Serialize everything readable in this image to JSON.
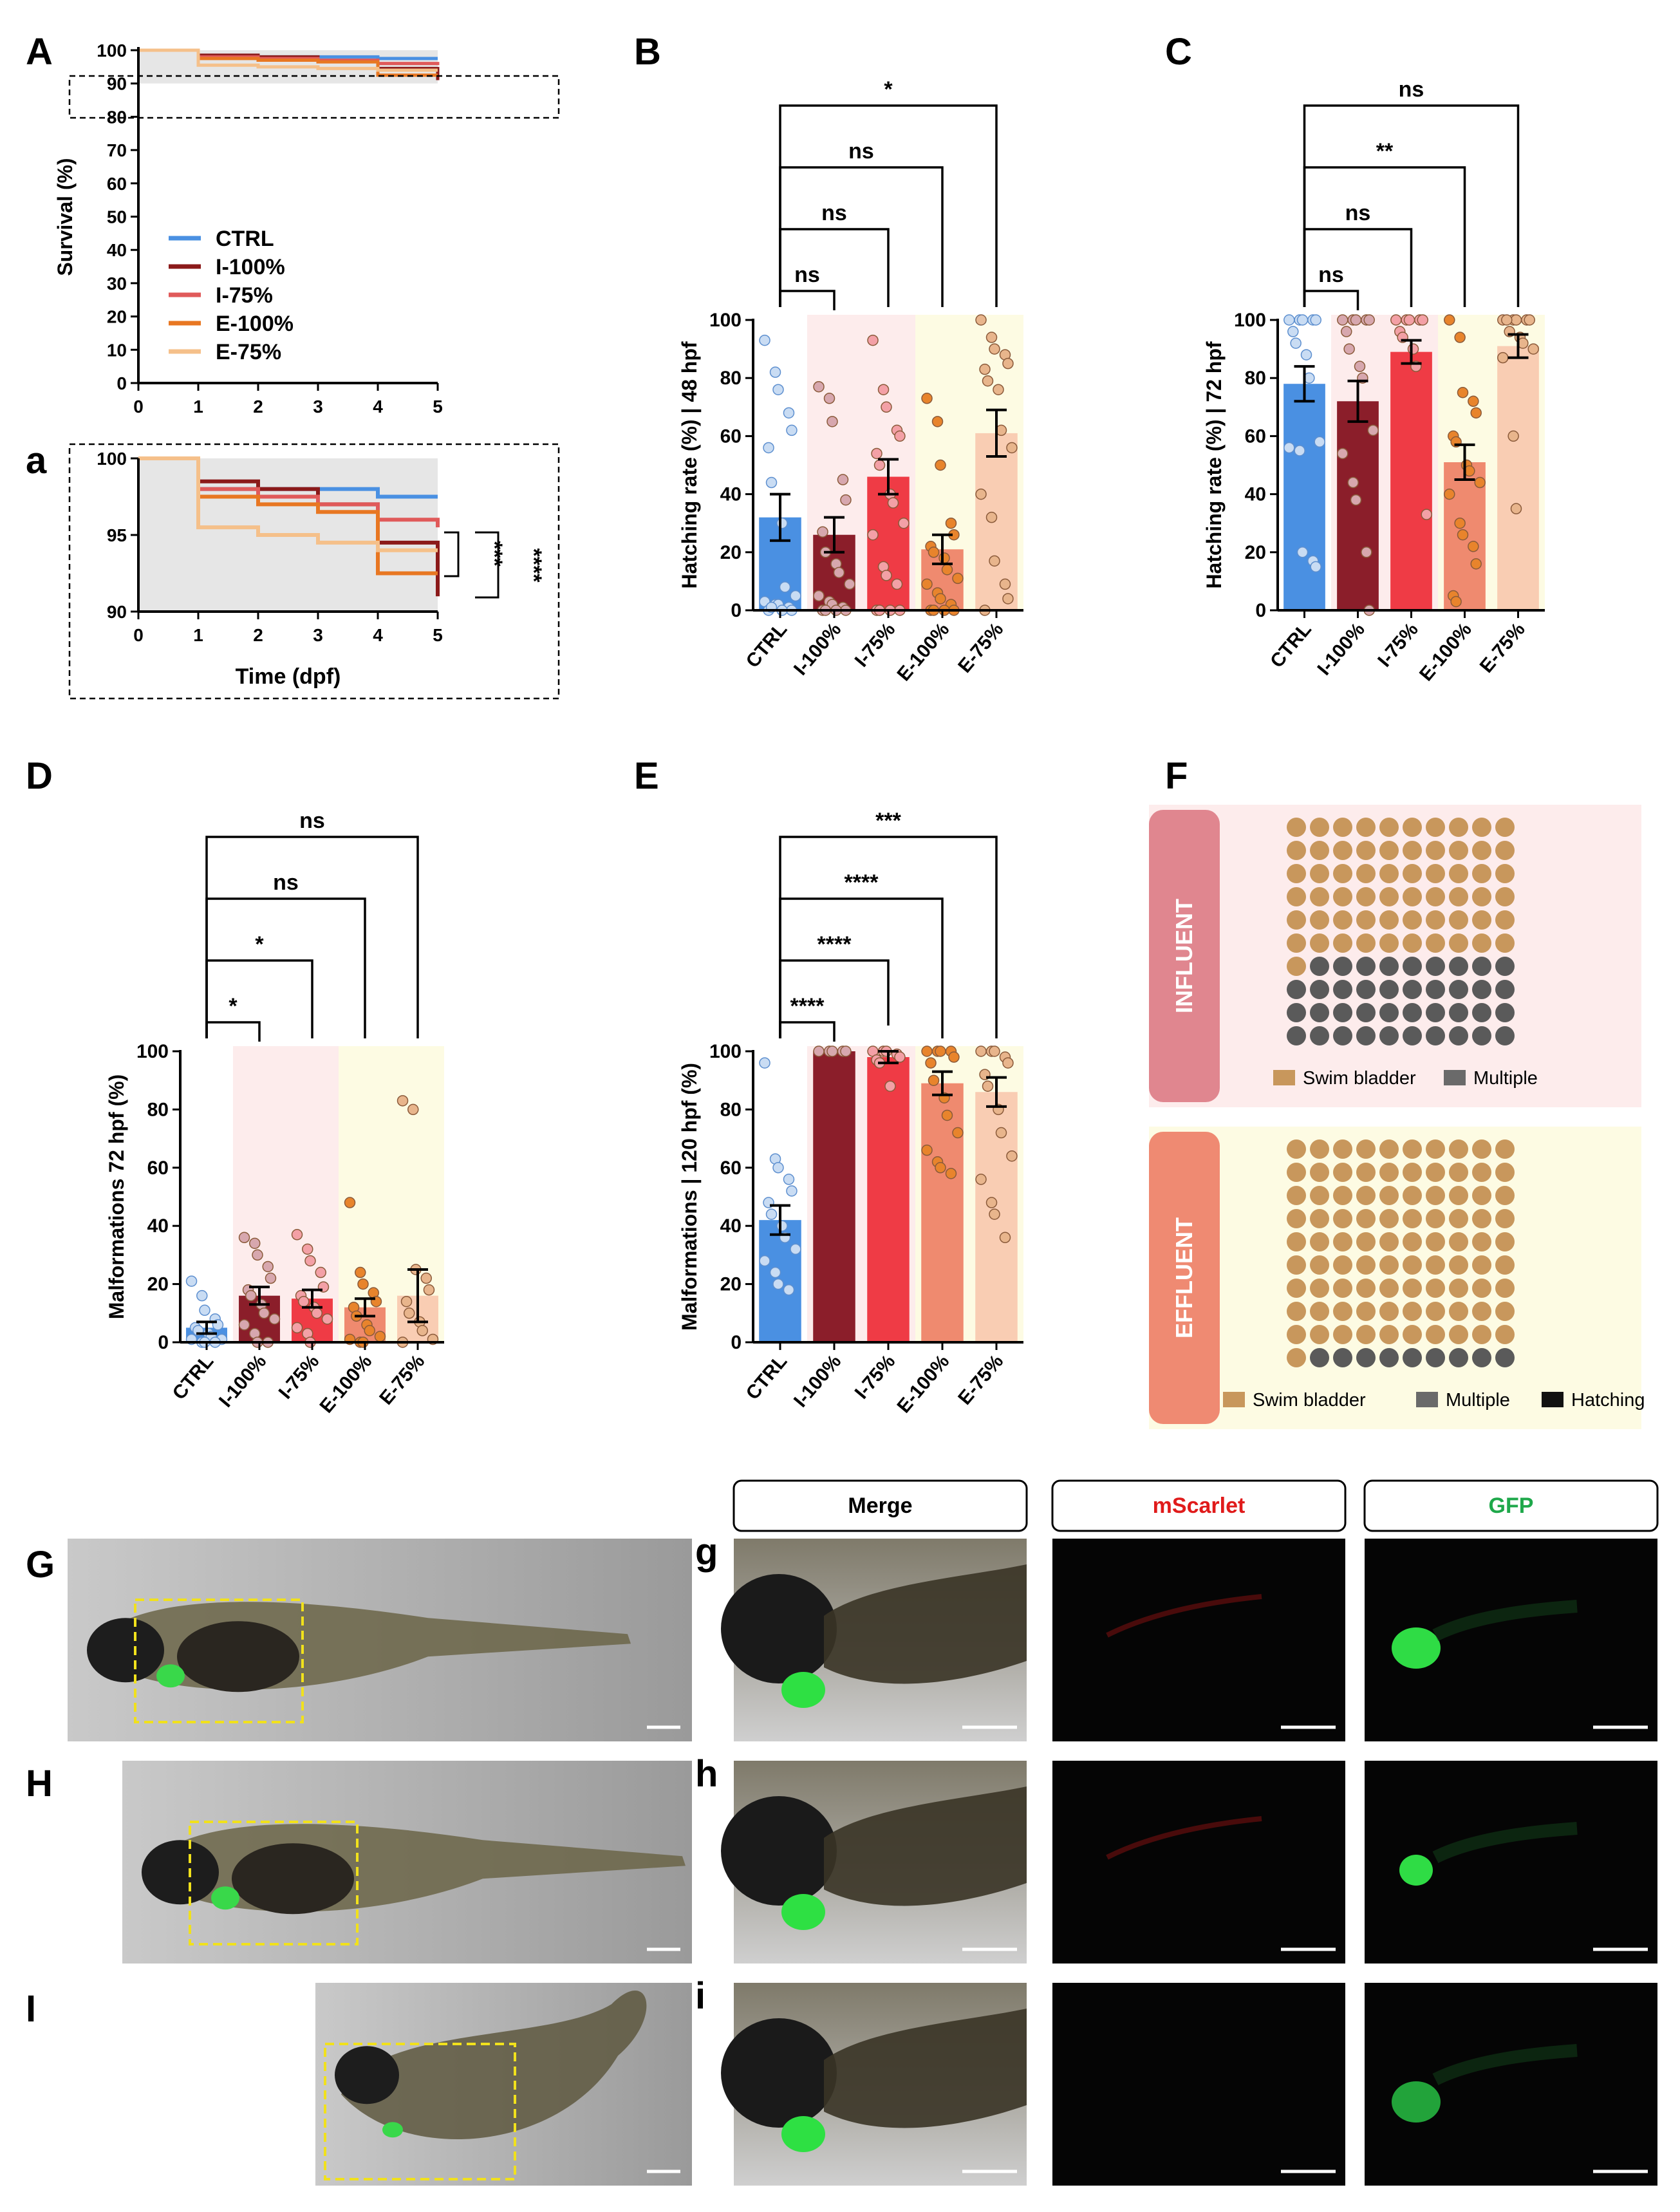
{
  "colors": {
    "CTRL": "#4a90e2",
    "I100": "#8b1e2a",
    "I75": "#ef3b45",
    "E100": "#ef8a6f",
    "E75": "#f9cdb3",
    "I100_line": "#8b1a1a",
    "I75_line": "#e05a5a",
    "E100_line": "#e87722",
    "E75_line": "#f5c08a",
    "influent_bg": "#fdecec",
    "effluent_bg": "#fdfbe3",
    "swim": "#c8975c",
    "multiple": "#5a5a5a"
  },
  "panel_labels": {
    "A": "A",
    "a": "a",
    "B": "B",
    "C": "C",
    "D": "D",
    "E": "E",
    "F": "F",
    "G": "G",
    "H": "H",
    "I": "I",
    "g": "g",
    "h": "h",
    "i": "i"
  },
  "chart_data": [
    {
      "id": "A",
      "type": "line",
      "title": "",
      "xlabel": "",
      "ylabel": "Survival (%)",
      "xlim": [
        0,
        5
      ],
      "ylim": [
        0,
        100
      ],
      "xticks": [
        "0",
        "1",
        "2",
        "3",
        "4",
        "5"
      ],
      "yticks": [
        "0",
        "10",
        "20",
        "30",
        "40",
        "50",
        "60",
        "70",
        "80",
        "90",
        "100"
      ],
      "legend": [
        "CTRL",
        "I-100%",
        "I-75%",
        "E-100%",
        "E-75%"
      ],
      "series": [
        {
          "name": "CTRL",
          "x": [
            0,
            1,
            4,
            5
          ],
          "y": [
            100,
            98,
            97.5,
            97.5
          ]
        },
        {
          "name": "I-100%",
          "x": [
            0,
            1,
            2,
            3,
            4,
            5
          ],
          "y": [
            100,
            98.5,
            98,
            97,
            94.5,
            91
          ]
        },
        {
          "name": "I-75%",
          "x": [
            0,
            1,
            2,
            3,
            4,
            5
          ],
          "y": [
            100,
            98,
            97.5,
            97,
            96,
            95.5
          ]
        },
        {
          "name": "E-100%",
          "x": [
            0,
            1,
            2,
            3,
            4,
            5
          ],
          "y": [
            100,
            97.5,
            97,
            96.5,
            92.5,
            92.5
          ]
        },
        {
          "name": "E-75%",
          "x": [
            0,
            1,
            2,
            3,
            4,
            5
          ],
          "y": [
            100,
            95.5,
            95,
            94.5,
            94,
            94
          ]
        }
      ]
    },
    {
      "id": "a",
      "type": "line",
      "xlabel": "Time (dpf)",
      "ylabel": "",
      "xlim": [
        0,
        5
      ],
      "ylim": [
        90,
        100
      ],
      "xticks": [
        "0",
        "1",
        "2",
        "3",
        "4",
        "5"
      ],
      "yticks": [
        "90",
        "95",
        "100"
      ],
      "annotations": [
        "***",
        "****"
      ]
    },
    {
      "id": "B",
      "type": "bar",
      "ylabel": "Hatching rate (%) | 48 hpf",
      "categories": [
        "CTRL",
        "I-100%",
        "I-75%",
        "E-100%",
        "E-75%"
      ],
      "values": [
        32,
        26,
        46,
        21,
        61
      ],
      "errors": [
        8,
        6,
        6,
        5,
        8
      ],
      "ylim": [
        0,
        100
      ],
      "yticks": [
        "0",
        "20",
        "40",
        "60",
        "80",
        "100"
      ],
      "points": [
        [
          93,
          82,
          76,
          68,
          62,
          56,
          44,
          30,
          8,
          5,
          3,
          2,
          2,
          1,
          0,
          0,
          1,
          0
        ],
        [
          77,
          73,
          65,
          45,
          38,
          27,
          20,
          16,
          13,
          9,
          5,
          3,
          2,
          1,
          0,
          0,
          0,
          0
        ],
        [
          93,
          76,
          70,
          62,
          60,
          54,
          50,
          40,
          37,
          30,
          26,
          15,
          12,
          9,
          0,
          0,
          0,
          0
        ],
        [
          73,
          65,
          50,
          30,
          26,
          22,
          20,
          18,
          14,
          11,
          9,
          6,
          4,
          2,
          0,
          0,
          0,
          0
        ],
        [
          100,
          94,
          90,
          88,
          85,
          83,
          79,
          76,
          62,
          56,
          40,
          32,
          17,
          9,
          4,
          0
        ]
      ],
      "comparisons": [
        {
          "label": "ns",
          "from": 0,
          "to": 1
        },
        {
          "label": "ns",
          "from": 0,
          "to": 2
        },
        {
          "label": "ns",
          "from": 0,
          "to": 3
        },
        {
          "label": "*",
          "from": 0,
          "to": 4
        }
      ]
    },
    {
      "id": "C",
      "type": "bar",
      "ylabel": "Hatching rate (%) | 72 hpf",
      "categories": [
        "CTRL",
        "I-100%",
        "I-75%",
        "E-100%",
        "E-75%"
      ],
      "values": [
        78,
        72,
        89,
        51,
        91
      ],
      "errors": [
        6,
        7,
        4,
        6,
        4
      ],
      "ylim": [
        0,
        100
      ],
      "yticks": [
        "0",
        "20",
        "40",
        "60",
        "80",
        "100"
      ],
      "points": [
        [
          100,
          100,
          100,
          100,
          100,
          96,
          92,
          88,
          80,
          58,
          56,
          55,
          20,
          17,
          15
        ],
        [
          100,
          100,
          100,
          100,
          100,
          96,
          90,
          84,
          80,
          62,
          54,
          44,
          38,
          20,
          0
        ],
        [
          100,
          100,
          100,
          100,
          100,
          96,
          94,
          90,
          84,
          33
        ],
        [
          100,
          94,
          75,
          72,
          68,
          60,
          58,
          50,
          48,
          44,
          40,
          30,
          26,
          22,
          16,
          5,
          3
        ],
        [
          100,
          100,
          100,
          100,
          100,
          100,
          96,
          94,
          92,
          90,
          87,
          60,
          35
        ]
      ],
      "comparisons": [
        {
          "label": "ns",
          "from": 0,
          "to": 1
        },
        {
          "label": "ns",
          "from": 0,
          "to": 2
        },
        {
          "label": "**",
          "from": 0,
          "to": 3
        },
        {
          "label": "ns",
          "from": 0,
          "to": 4
        }
      ]
    },
    {
      "id": "D",
      "type": "bar",
      "ylabel": "Malformations 72 hpf (%)",
      "categories": [
        "CTRL",
        "I-100%",
        "I-75%",
        "E-100%",
        "E-75%"
      ],
      "values": [
        5,
        16,
        15,
        12,
        16
      ],
      "errors": [
        2,
        3,
        3,
        3,
        9
      ],
      "ylim": [
        0,
        100
      ],
      "yticks": [
        "0",
        "20",
        "40",
        "60",
        "80",
        "100"
      ],
      "points": [
        [
          21,
          16,
          11,
          8,
          6,
          5,
          4,
          3,
          2,
          1,
          1,
          0,
          0,
          0
        ],
        [
          36,
          34,
          30,
          26,
          22,
          18,
          16,
          13,
          10,
          8,
          6,
          3,
          0,
          0
        ],
        [
          37,
          32,
          28,
          24,
          19,
          16,
          14,
          12,
          10,
          8,
          5,
          3,
          0
        ],
        [
          48,
          24,
          20,
          17,
          14,
          12,
          9,
          6,
          4,
          2,
          1,
          0,
          0
        ],
        [
          83,
          80,
          25,
          22,
          18,
          14,
          10,
          7,
          4,
          1,
          0
        ]
      ],
      "comparisons": [
        {
          "label": "*",
          "from": 0,
          "to": 1
        },
        {
          "label": "*",
          "from": 0,
          "to": 2
        },
        {
          "label": "ns",
          "from": 0,
          "to": 3
        },
        {
          "label": "ns",
          "from": 0,
          "to": 4
        }
      ]
    },
    {
      "id": "E",
      "type": "bar",
      "ylabel": "Malformations | 120 hpf (%)",
      "categories": [
        "CTRL",
        "I-100%",
        "I-75%",
        "E-100%",
        "E-75%"
      ],
      "values": [
        42,
        100,
        98,
        89,
        86
      ],
      "errors": [
        5,
        0,
        2,
        4,
        5
      ],
      "ylim": [
        0,
        100
      ],
      "yticks": [
        "0",
        "20",
        "40",
        "60",
        "80",
        "100"
      ],
      "points": [
        [
          96,
          63,
          60,
          56,
          52,
          48,
          44,
          40,
          36,
          32,
          28,
          24,
          20,
          18
        ],
        [
          100,
          100,
          100,
          100,
          100
        ],
        [
          100,
          100,
          100,
          99,
          98,
          97,
          96,
          88
        ],
        [
          100,
          100,
          100,
          100,
          98,
          96,
          90,
          84,
          78,
          72,
          66,
          62,
          60,
          58
        ],
        [
          100,
          100,
          100,
          98,
          96,
          92,
          88,
          80,
          72,
          64,
          56,
          48,
          44,
          36
        ]
      ],
      "comparisons": [
        {
          "label": "****",
          "from": 0,
          "to": 1
        },
        {
          "label": "****",
          "from": 0,
          "to": 2
        },
        {
          "label": "****",
          "from": 0,
          "to": 3
        },
        {
          "label": "***",
          "from": 0,
          "to": 4
        }
      ]
    },
    {
      "id": "F",
      "type": "waffle",
      "groups": [
        {
          "label": "INFLUENT",
          "swim": 61,
          "multiple": 39,
          "legend": [
            "Swim bladder",
            "Multiple"
          ]
        },
        {
          "label": "EFFLUENT",
          "swim": 91,
          "multiple": 9,
          "legend": [
            "Swim bladder",
            "Multiple",
            "Hatching"
          ]
        }
      ]
    }
  ],
  "micrograph_headers": [
    "Merge",
    "mScarlet",
    "GFP"
  ]
}
